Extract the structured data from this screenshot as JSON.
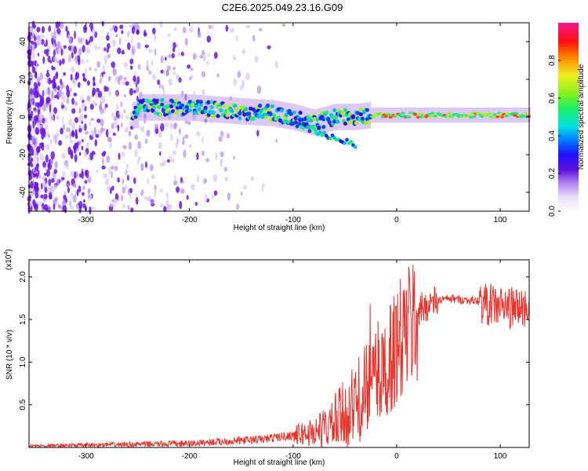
{
  "title": "C2E6.2025.049.23.16.G09",
  "chart_data": [
    {
      "type": "heatmap",
      "name": "spectrogram",
      "xlabel": "Height of straight line (km)",
      "ylabel": "Frequency (Hz)",
      "xlim": [
        -355,
        128
      ],
      "ylim": [
        -50,
        50
      ],
      "xticks": [
        -300,
        -200,
        -100,
        0,
        100
      ],
      "yticks": [
        -40,
        -20,
        0,
        20,
        40
      ],
      "colorbar": {
        "label": "Normalized spectral amplitude",
        "range": [
          0,
          1
        ],
        "ticks": [
          0.0,
          0.2,
          0.4,
          0.6,
          0.8
        ]
      },
      "signal_band": [
        {
          "x": -250,
          "f": 5
        },
        {
          "x": -200,
          "f": 5
        },
        {
          "x": -150,
          "f": 3
        },
        {
          "x": -120,
          "f": 2
        },
        {
          "x": -100,
          "f": 0
        },
        {
          "x": -80,
          "f": -3
        },
        {
          "x": -60,
          "f": 0
        },
        {
          "x": -40,
          "f": 0
        },
        {
          "x": -25,
          "f": 1
        },
        {
          "x": 0,
          "f": 1
        },
        {
          "x": 50,
          "f": 1
        },
        {
          "x": 100,
          "f": 1
        },
        {
          "x": 128,
          "f": 1
        }
      ]
    },
    {
      "type": "line",
      "name": "snr",
      "xlabel": "Height of straight line (km)",
      "ylabel": "SNR (10 * v/v)",
      "scale_label": "(x10",
      "scale_exponent": "4",
      "xlim": [
        -355,
        128
      ],
      "ylim": [
        0,
        2.2
      ],
      "xticks": [
        -300,
        -200,
        -100,
        0,
        100
      ],
      "yticks": [
        0.5,
        1.0,
        1.5,
        2.0
      ],
      "color": "#e8322a",
      "series": [
        {
          "name": "SNR",
          "x": [
            -355,
            -300,
            -250,
            -200,
            -160,
            -130,
            -100,
            -80,
            -60,
            -50,
            -40,
            -30,
            -25,
            -20,
            -15,
            -10,
            -5,
            0,
            10,
            20,
            30,
            40,
            50,
            60,
            70,
            80,
            90,
            100,
            110,
            120,
            128
          ],
          "y": [
            0.02,
            0.03,
            0.04,
            0.05,
            0.08,
            0.1,
            0.15,
            0.2,
            0.3,
            0.42,
            0.55,
            0.72,
            0.82,
            0.9,
            0.98,
            1.05,
            1.15,
            1.25,
            1.45,
            1.6,
            1.7,
            1.73,
            1.75,
            1.74,
            1.73,
            1.72,
            1.7,
            1.68,
            1.66,
            1.66,
            1.67
          ]
        }
      ]
    }
  ]
}
